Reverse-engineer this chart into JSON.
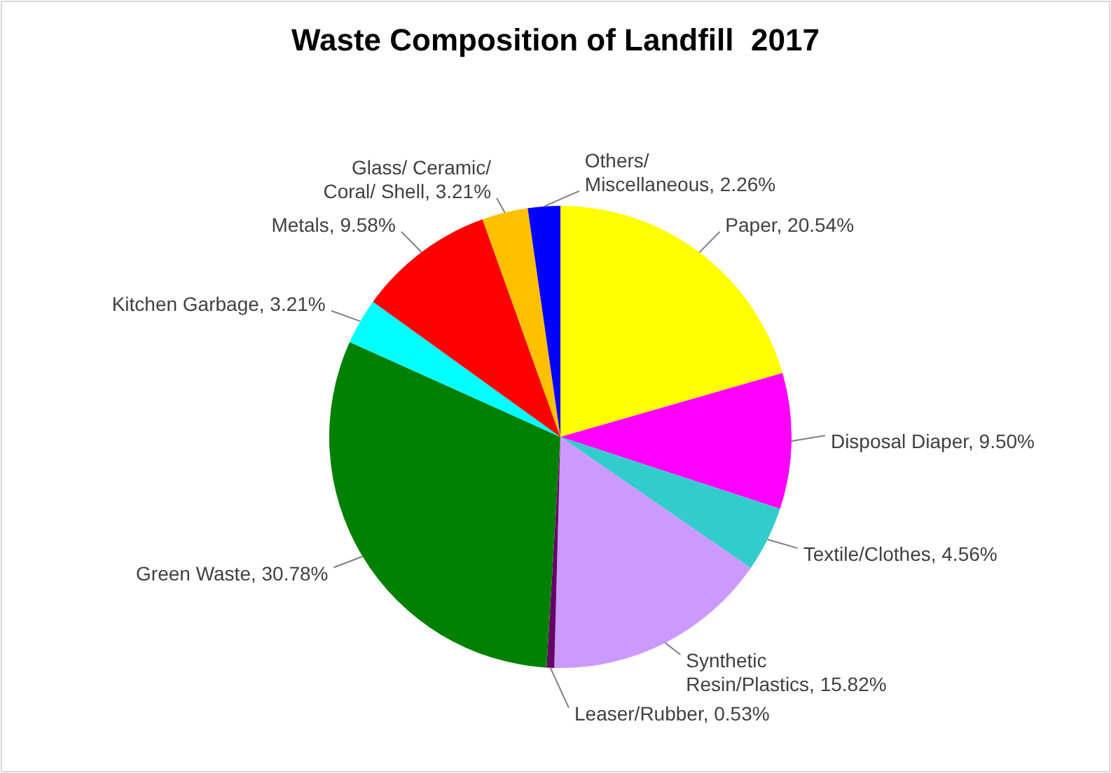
{
  "chart_data": {
    "type": "pie",
    "title": "Waste Composition of Landfill  2017",
    "categories": [
      "Paper",
      "Disposal Diaper",
      "Textile/Clothes",
      "Synthetic Resin/Plastics",
      "Leaser/Rubber",
      "Green Waste",
      "Kitchen Garbage",
      "Metals",
      "Glass/ Ceramic/ Coral/ Shell",
      "Others/ Miscellaneous"
    ],
    "values": [
      20.54,
      9.5,
      4.56,
      15.82,
      0.53,
      30.78,
      3.21,
      9.58,
      3.21,
      2.26
    ],
    "value_labels": [
      "20.54%",
      "9.50%",
      "4.56%",
      "15.82%",
      "0.53%",
      "30.78%",
      "3.21%",
      "9.58%",
      "3.21%",
      "2.26%"
    ],
    "colors": [
      "#ffff00",
      "#ff00ff",
      "#33cccc",
      "#cc99ff",
      "#660066",
      "#008000",
      "#00ffff",
      "#ff0000",
      "#ffc000",
      "#0000ff"
    ]
  }
}
